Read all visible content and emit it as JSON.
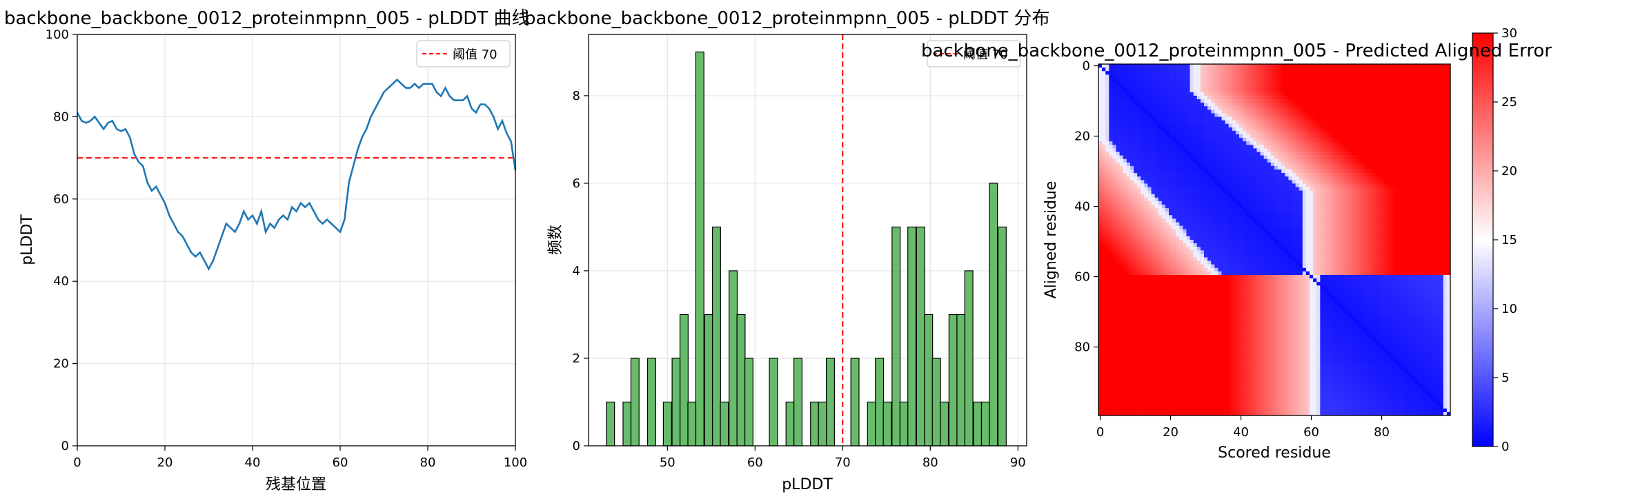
{
  "chart_data": [
    {
      "type": "line",
      "title": "backbone_backbone_0012_proteinmpnn_005 - pLDDT 曲线",
      "xlabel": "残基位置",
      "ylabel": "pLDDT",
      "xlim": [
        0,
        100
      ],
      "ylim": [
        0,
        100
      ],
      "xticks": [
        "0",
        "20",
        "40",
        "60",
        "80",
        "100"
      ],
      "yticks": [
        "0",
        "20",
        "40",
        "60",
        "80",
        "100"
      ],
      "grid": true,
      "legend_position": "top-right",
      "color": "#1f77b4",
      "threshold": {
        "value": 70,
        "label": "阈值 70",
        "color": "#ff0000"
      },
      "x": [
        0,
        1,
        2,
        3,
        4,
        5,
        6,
        7,
        8,
        9,
        10,
        11,
        12,
        13,
        14,
        15,
        16,
        17,
        18,
        19,
        20,
        21,
        22,
        23,
        24,
        25,
        26,
        27,
        28,
        29,
        30,
        31,
        32,
        33,
        34,
        35,
        36,
        37,
        38,
        39,
        40,
        41,
        42,
        43,
        44,
        45,
        46,
        47,
        48,
        49,
        50,
        51,
        52,
        53,
        54,
        55,
        56,
        57,
        58,
        59,
        60,
        61,
        62,
        63,
        64,
        65,
        66,
        67,
        68,
        69,
        70,
        71,
        72,
        73,
        74,
        75,
        76,
        77,
        78,
        79,
        80,
        81,
        82,
        83,
        84,
        85,
        86,
        87,
        88,
        89,
        90,
        91,
        92,
        93,
        94,
        95,
        96,
        97,
        98,
        99,
        100
      ],
      "y": [
        81,
        79,
        78.5,
        79,
        80,
        78.5,
        77,
        78.5,
        79,
        77,
        76.5,
        77,
        75,
        71,
        69,
        68,
        64,
        62,
        63,
        61,
        59,
        56,
        54,
        52,
        51,
        49,
        47,
        46,
        47,
        45,
        43,
        45,
        48,
        51,
        54,
        53,
        52,
        54,
        57,
        55,
        56,
        54,
        57,
        52,
        54,
        53,
        55,
        56,
        55,
        58,
        57,
        59,
        58,
        59,
        57,
        55,
        54,
        55,
        54,
        53,
        52,
        55,
        64,
        68,
        72,
        75,
        77,
        80,
        82,
        84,
        86,
        87,
        88,
        89,
        88,
        87,
        87,
        88,
        87,
        88,
        88,
        88,
        86,
        85,
        87,
        85,
        84,
        84,
        84,
        85,
        82,
        81,
        83,
        83,
        82,
        80,
        77,
        79,
        76,
        74,
        67
      ]
    },
    {
      "type": "bar",
      "title": "backbone_backbone_0012_proteinmpnn_005 - pLDDT 分布",
      "xlabel": "pLDDT",
      "ylabel": "频数",
      "xlim": [
        41,
        91
      ],
      "ylim": [
        0,
        9.4
      ],
      "xticks": [
        "50",
        "60",
        "70",
        "80",
        "90"
      ],
      "yticks": [
        "0",
        "2",
        "4",
        "6",
        "8"
      ],
      "grid": true,
      "legend_position": "top-right",
      "color": "#4caf50",
      "threshold": {
        "value": 70,
        "label": "阈值 70",
        "color": "#ff0000"
      },
      "bin_width": 0.93,
      "bins": [
        {
          "x": 43.5,
          "count": 1
        },
        {
          "x": 45.4,
          "count": 1
        },
        {
          "x": 46.3,
          "count": 2
        },
        {
          "x": 48.2,
          "count": 2
        },
        {
          "x": 50.0,
          "count": 1
        },
        {
          "x": 51.0,
          "count": 2
        },
        {
          "x": 51.9,
          "count": 3
        },
        {
          "x": 52.8,
          "count": 1
        },
        {
          "x": 53.7,
          "count": 9
        },
        {
          "x": 54.7,
          "count": 3
        },
        {
          "x": 55.6,
          "count": 5
        },
        {
          "x": 56.5,
          "count": 1
        },
        {
          "x": 57.5,
          "count": 4
        },
        {
          "x": 58.4,
          "count": 3
        },
        {
          "x": 59.3,
          "count": 2
        },
        {
          "x": 62.1,
          "count": 2
        },
        {
          "x": 64.0,
          "count": 1
        },
        {
          "x": 64.9,
          "count": 2
        },
        {
          "x": 66.8,
          "count": 1
        },
        {
          "x": 67.7,
          "count": 1
        },
        {
          "x": 68.6,
          "count": 2
        },
        {
          "x": 71.4,
          "count": 2
        },
        {
          "x": 73.3,
          "count": 1
        },
        {
          "x": 74.2,
          "count": 2
        },
        {
          "x": 75.1,
          "count": 1
        },
        {
          "x": 76.1,
          "count": 5
        },
        {
          "x": 77.0,
          "count": 1
        },
        {
          "x": 77.9,
          "count": 5
        },
        {
          "x": 78.9,
          "count": 5
        },
        {
          "x": 79.8,
          "count": 3
        },
        {
          "x": 80.7,
          "count": 2
        },
        {
          "x": 81.6,
          "count": 1
        },
        {
          "x": 82.6,
          "count": 3
        },
        {
          "x": 83.5,
          "count": 3
        },
        {
          "x": 84.4,
          "count": 4
        },
        {
          "x": 85.4,
          "count": 1
        },
        {
          "x": 86.3,
          "count": 1
        },
        {
          "x": 87.2,
          "count": 6
        },
        {
          "x": 88.2,
          "count": 5
        }
      ]
    },
    {
      "type": "heatmap",
      "title": "backbone_backbone_0012_proteinmpnn_005 - Predicted Aligned Error",
      "xlabel": "Scored residue",
      "ylabel": "Aligned residue",
      "size": 100,
      "xticks": [
        "0",
        "20",
        "40",
        "60",
        "80"
      ],
      "yticks": [
        "0",
        "20",
        "40",
        "60",
        "80"
      ],
      "colormap": "bwr",
      "vmin": 0,
      "vmax": 30,
      "colorbar_ticks": [
        "0",
        "5",
        "10",
        "15",
        "20",
        "25",
        "30"
      ],
      "description_blocks": {
        "low_error_diagonal_band": true,
        "domain_boundary_residue": 60
      }
    }
  ]
}
